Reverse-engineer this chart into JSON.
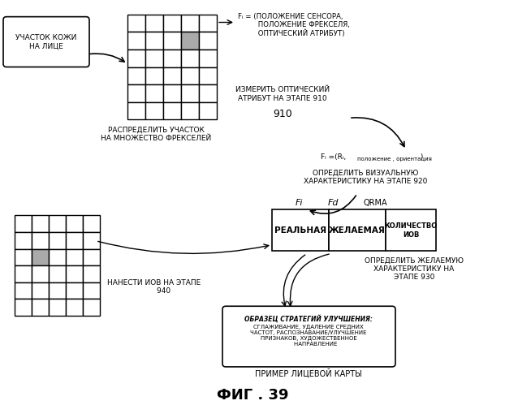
{
  "bg_color": "#ffffff",
  "title": "ФИГ . 39",
  "grid_top_label": "РАСПРЕДЕЛИТЬ УЧАСТОК\nНА МНОЖЕСТВО ФРЕКСЕЛЕЙ",
  "fi_arrow_text": "Fᵢ = (ПОЛОЖЕНИЕ СЕНСОРА,\n         ПОЛОЖЕНИЕ ФРЕКСЕЛЯ,\n         ОПТИЧЕСКИЙ АТРИБУТ)",
  "step910_line1": "ИЗМЕРИТЬ ОПТИЧЕСКИЙ",
  "step910_line2": "АТРИБУТ НА ЭТАПЕ 910",
  "step910_num": "910",
  "step920_fi": "Fᵢ =(Rᵢ,положение, ориентация )",
  "step920_text": "ОПРЕДЕЛИТЬ ВИЗУАЛЬНУЮ\nХАРАКТЕРИСТИКУ НА ЭТАПЕ 920",
  "skin_label": "УЧАСТОК КОЖИ\nНА ЛИЦЕ",
  "table_col1": "РЕАЛЬНАЯ",
  "table_col2": "ЖЕЛАЕМАЯ",
  "table_col3": "КОЛИЧЕСТВО\nИОВ",
  "table_header1": "Fi",
  "table_header2": "Fd",
  "table_header3": "QRMA",
  "step930_text": "ОПРЕДЕЛИТЬ ЖЕЛАЕМУЮ\nХАРАКТЕРИСТИКУ НА\nЭТАПЕ 930",
  "step940_text": "НАНЕСТИ ИОВ НА ЭТАПЕ\n        940",
  "example_label": "ПРИМЕР ЛИЦЕВОЙ КАРТЫ",
  "example_box_title": "ОБРАЗЕЦ СТРАТЕГИЙ УЛУЧШЕНИЯ:",
  "example_box_text": "СГЛАЖИВАНИЕ, УДАЛЕНИЕ СРЕДНИХ\nЧАСТОТ, РАСПОЗНАВАНИЕ/УЛУЧШЕНИЕ\nПРИЗНАКОВ, ХУДОЖЕСТВЕННОЕ\n        НАПРАВЛЕНИЕ"
}
